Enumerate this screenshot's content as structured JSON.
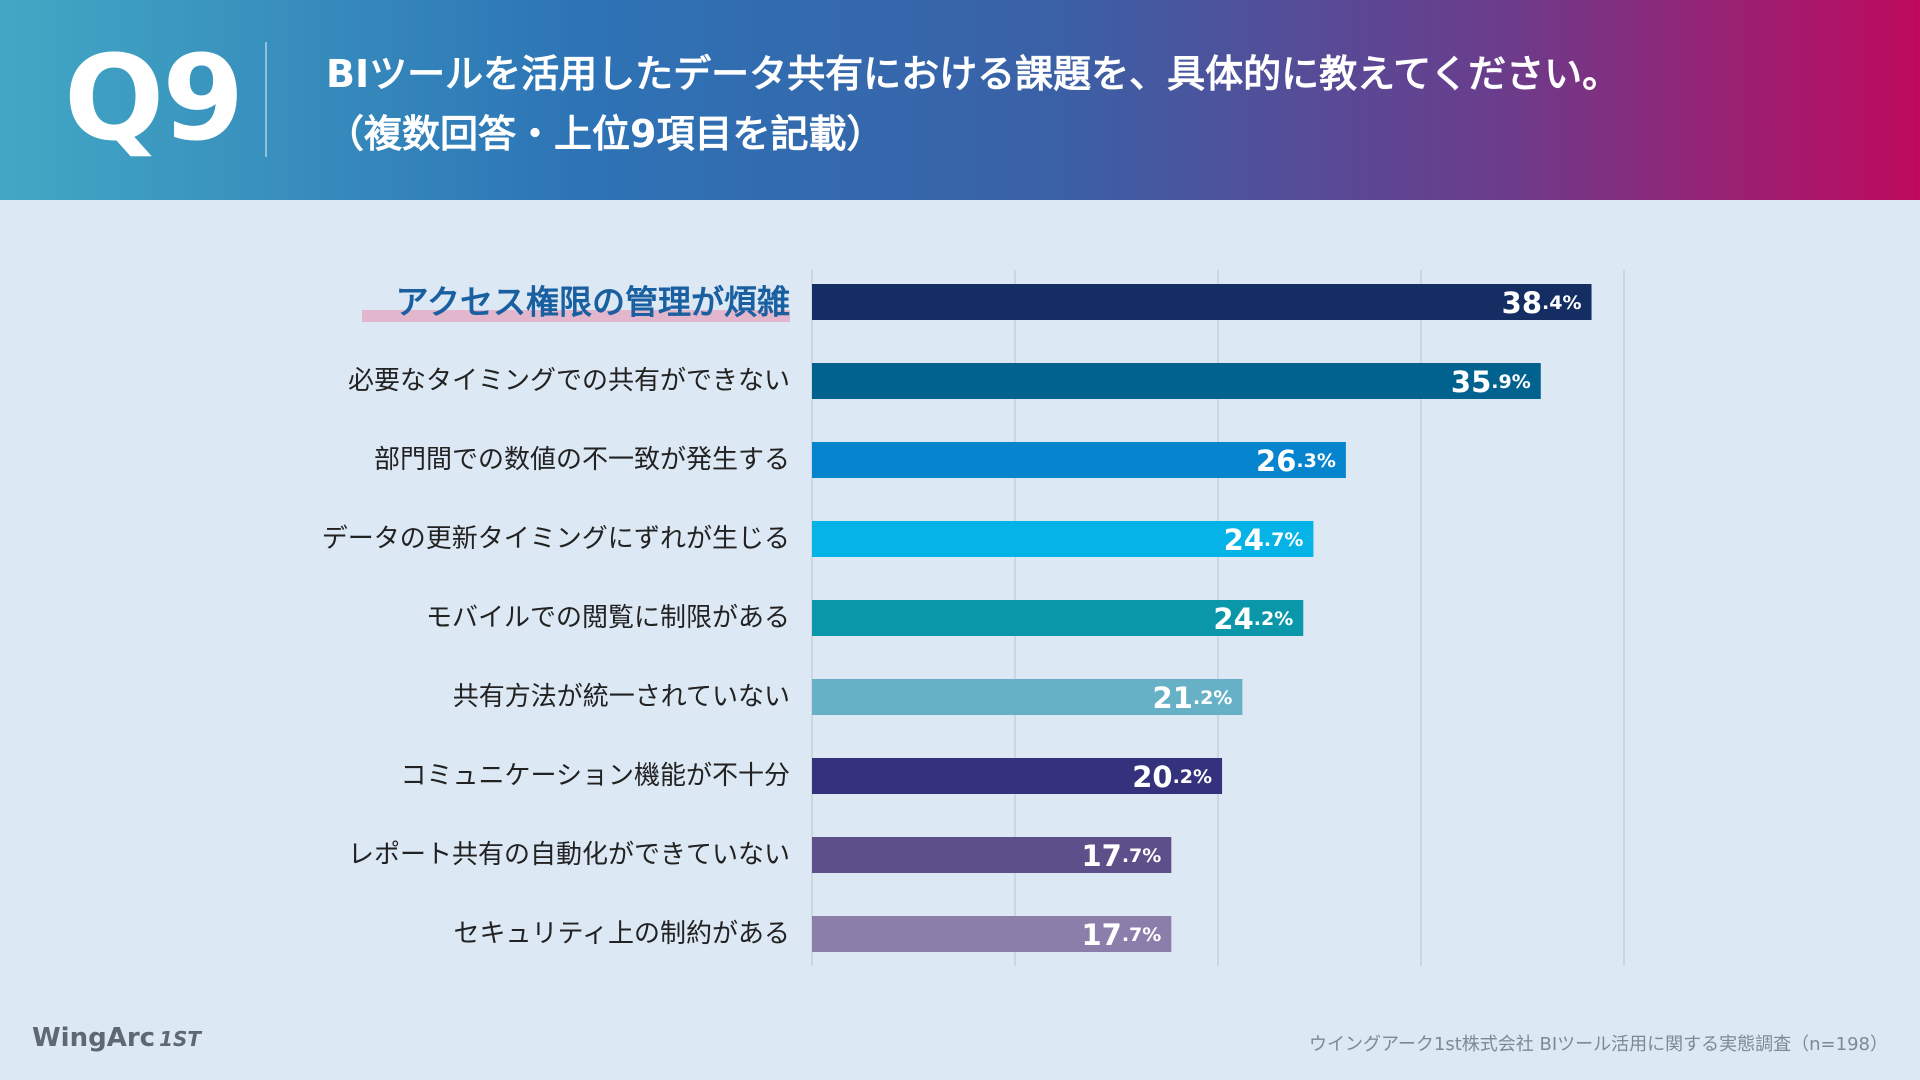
{
  "header": {
    "question_number": "Q9",
    "title_line1": "BIツールを活用したデータ共有における課題を、具体的に教えてください。",
    "title_line2": "（複数回答・上位9項目を記載）"
  },
  "chart_data": {
    "type": "bar",
    "orientation": "horizontal",
    "categories": [
      "アクセス権限の管理が煩雑",
      "必要なタイミングでの共有ができない",
      "部門間での数値の不一致が発生する",
      "データの更新タイミングにずれが生じる",
      "モバイルでの閲覧に制限がある",
      "共有方法が統一されていない",
      "コミュニケーション機能が不十分",
      "レポート共有の自動化ができていない",
      "セキュリティ上の制約がある"
    ],
    "values": [
      38.4,
      35.9,
      26.3,
      24.7,
      24.2,
      21.2,
      20.2,
      17.7,
      17.7
    ],
    "value_labels_int": [
      "38",
      "35",
      "26",
      "24",
      "24",
      "21",
      "20",
      "17",
      "17"
    ],
    "value_labels_dec": [
      ".4%",
      ".9%",
      ".3%",
      ".7%",
      ".2%",
      ".2%",
      ".2%",
      ".7%",
      ".7%"
    ],
    "highlighted_category": "アクセス権限の管理が煩雑",
    "xlim": [
      0,
      40
    ],
    "grid": true,
    "colors": [
      "#142d63",
      "#02628f",
      "#0685ce",
      "#05b3e6",
      "#0a97aa",
      "#67b1c6",
      "#34327c",
      "#5c4f8a",
      "#8b7eaa"
    ],
    "highlight_color": "#1a5fa0",
    "highlight_underline_color": "#e3a9c2"
  },
  "branding": {
    "logo_text": "WingArc",
    "logo_suffix": "1ST"
  },
  "footer": {
    "source": "ウイングアーク1st株式会社  BIツール活用に関する実態調査（n=198）"
  }
}
